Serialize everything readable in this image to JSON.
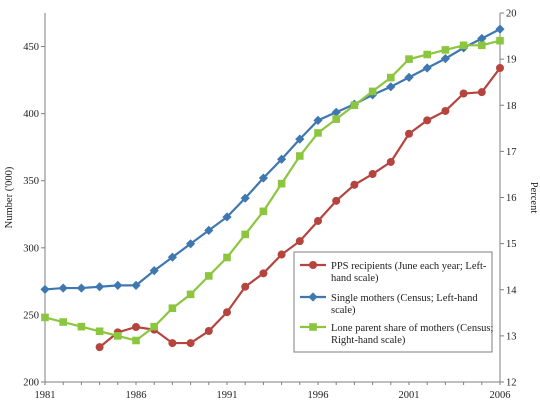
{
  "chart_data": {
    "type": "line",
    "title": "",
    "xlabel": "",
    "ylabel_left": "Number ('000)",
    "ylabel_right": "Percent",
    "x_range": [
      1981,
      2006
    ],
    "x_ticks": [
      1981,
      1986,
      1991,
      1996,
      2001,
      2006
    ],
    "ylim_left": [
      200,
      475
    ],
    "yticks_left": [
      200,
      250,
      300,
      350,
      400,
      450
    ],
    "ylim_right": [
      12,
      20
    ],
    "yticks_right": [
      12,
      13,
      14,
      15,
      16,
      17,
      18,
      19,
      20
    ],
    "grid": false,
    "legend_position": "center-right",
    "series": [
      {
        "name": "PPS recipients (June each year; Left-hand scale)",
        "axis": "left",
        "color": "#b5443f",
        "marker": "circle",
        "x": [
          1984,
          1985,
          1986,
          1987,
          1988,
          1989,
          1990,
          1991,
          1992,
          1993,
          1994,
          1995,
          1996,
          1997,
          1998,
          1999,
          2000,
          2001,
          2002,
          2003,
          2004,
          2005,
          2006
        ],
        "values": [
          226,
          237,
          241,
          239,
          229,
          229,
          238,
          252,
          271,
          281,
          295,
          305,
          320,
          335,
          347,
          355,
          364,
          385,
          395,
          402,
          415,
          416,
          434
        ]
      },
      {
        "name": "Single mothers (Census; Left-hand scale)",
        "axis": "left",
        "color": "#3f78b0",
        "marker": "diamond",
        "x": [
          1981,
          1982,
          1983,
          1984,
          1985,
          1986,
          1987,
          1988,
          1989,
          1990,
          1991,
          1992,
          1993,
          1994,
          1995,
          1996,
          1997,
          1998,
          1999,
          2000,
          2001,
          2002,
          2003,
          2004,
          2005,
          2006
        ],
        "values": [
          269,
          270,
          270,
          271,
          272,
          272,
          283,
          293,
          303,
          313,
          323,
          337,
          352,
          366,
          381,
          395,
          401,
          407,
          414,
          420,
          427,
          434,
          441,
          449,
          456,
          463
        ]
      },
      {
        "name": "Lone parent share of mothers (Census; Right-hand scale)",
        "axis": "right",
        "color": "#8cc63f",
        "marker": "square",
        "x": [
          1981,
          1982,
          1983,
          1984,
          1985,
          1986,
          1987,
          1988,
          1989,
          1990,
          1991,
          1992,
          1993,
          1994,
          1995,
          1996,
          1997,
          1998,
          1999,
          2000,
          2001,
          2002,
          2003,
          2004,
          2005,
          2006
        ],
        "values": [
          13.4,
          13.3,
          13.2,
          13.1,
          13.0,
          12.9,
          13.2,
          13.6,
          13.9,
          14.3,
          14.7,
          15.2,
          15.7,
          16.3,
          16.9,
          17.4,
          17.7,
          18.0,
          18.3,
          18.6,
          19.0,
          19.1,
          19.2,
          19.3,
          19.3,
          19.4
        ]
      }
    ],
    "legend_lines": [
      [
        "PPS recipients (June each year; Left-",
        "hand scale)"
      ],
      [
        "Single mothers (Census; Left-hand",
        "scale)"
      ],
      [
        "Lone parent share of mothers (Census;",
        "Right-hand scale)"
      ]
    ]
  }
}
